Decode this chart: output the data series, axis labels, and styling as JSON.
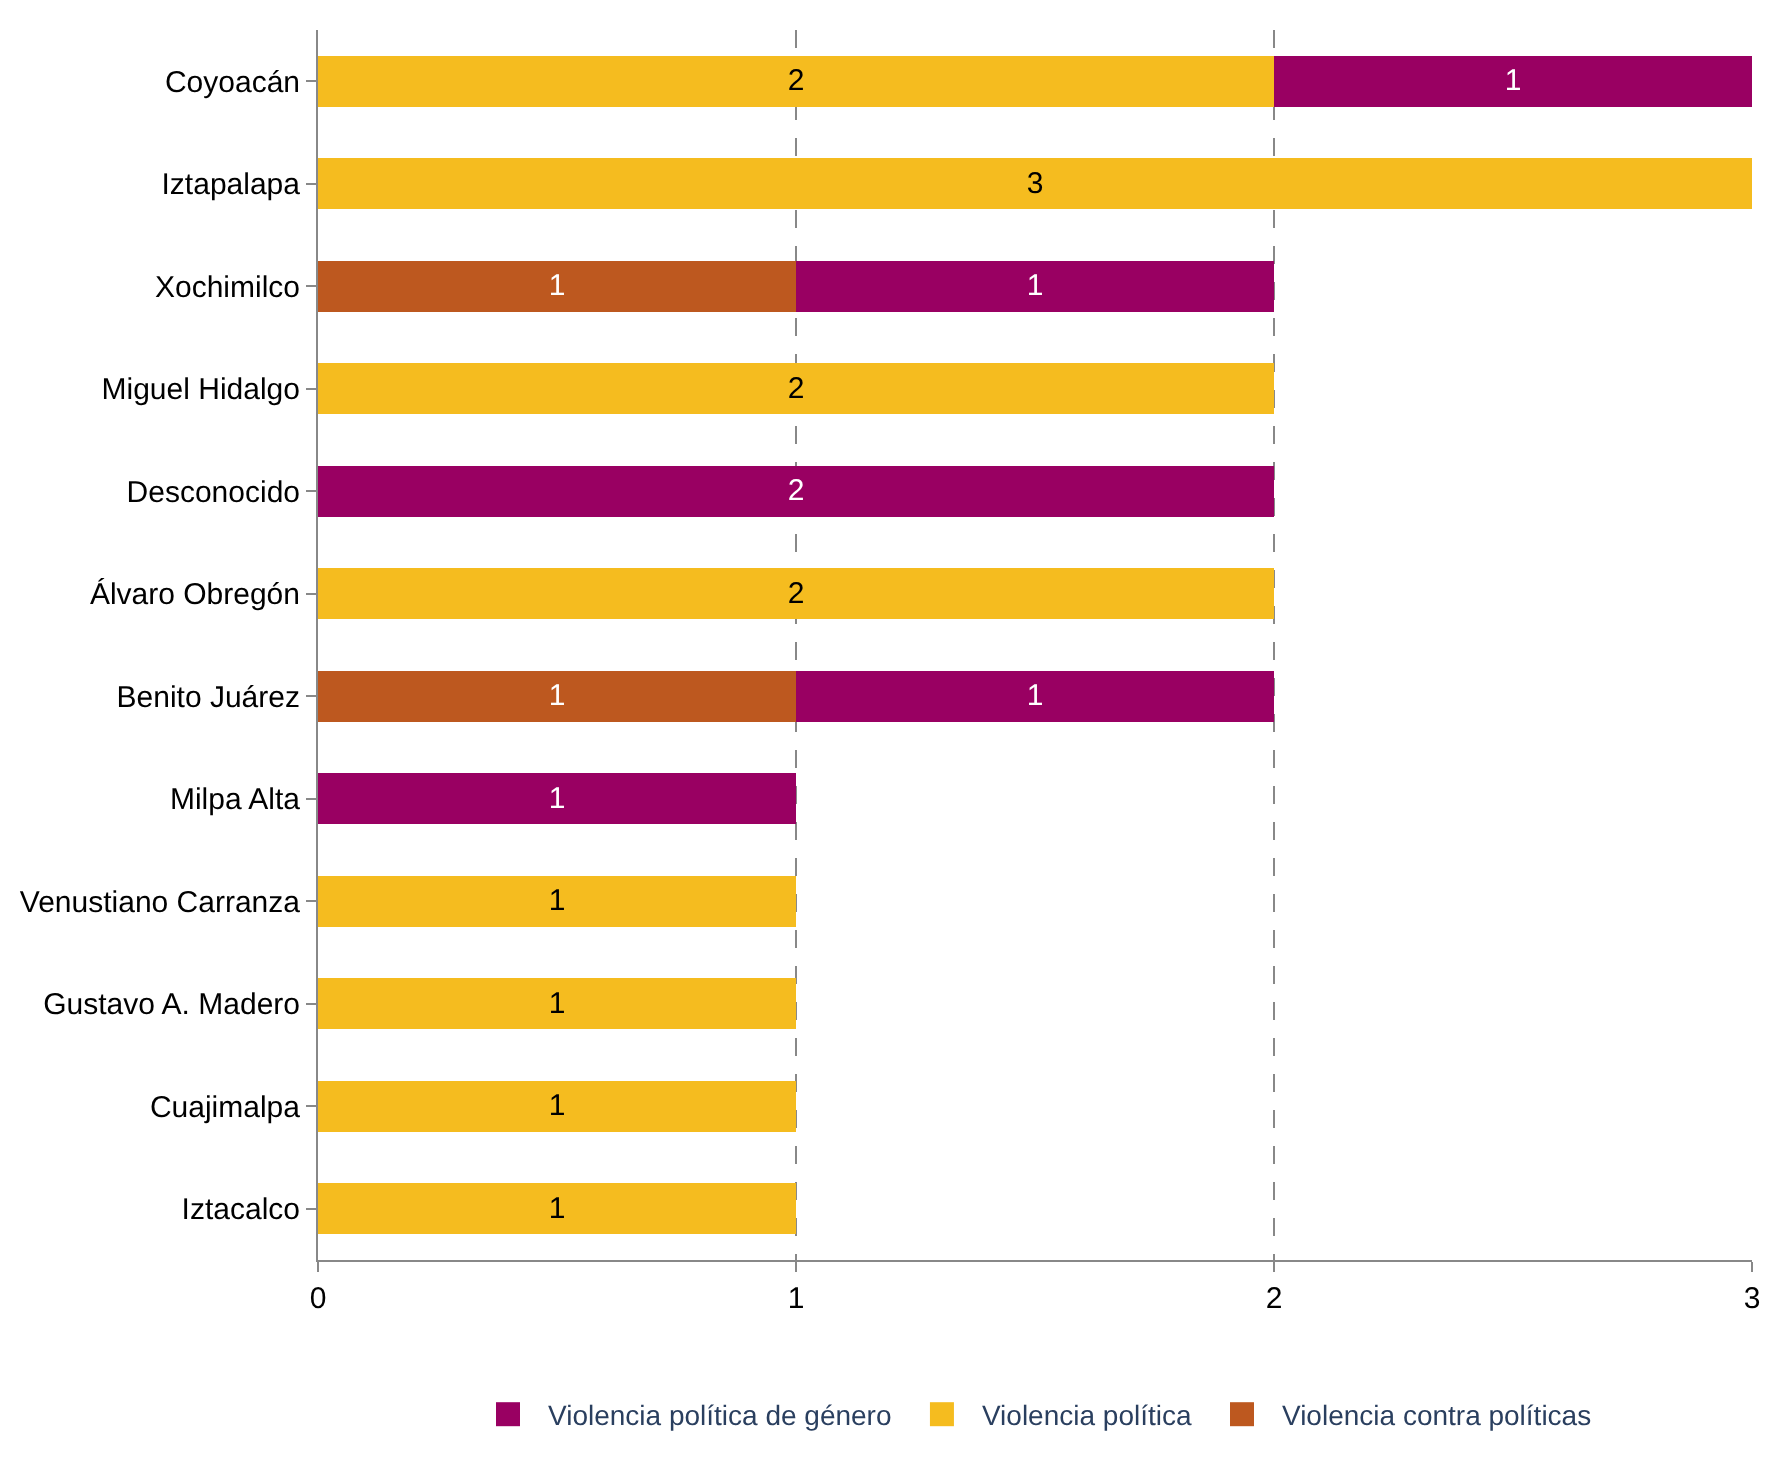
{
  "chart_data": {
    "type": "bar",
    "orientation": "horizontal",
    "stacked": true,
    "data_labels": true,
    "grid": "x",
    "legend": "bottom",
    "categories": [
      "Coyoacán",
      "Iztapalapa",
      "Xochimilco",
      "Miguel Hidalgo",
      "Desconocido",
      "Álvaro Obregón",
      "Benito Juárez",
      "Milpa Alta",
      "Venustiano Carranza",
      "Gustavo A. Madero",
      "Cuajimalpa",
      "Iztacalco"
    ],
    "series": [
      {
        "name": "Violencia contra políticas",
        "color": "#bd581f",
        "values": [
          null,
          null,
          1,
          null,
          null,
          null,
          1,
          null,
          null,
          null,
          null,
          null
        ]
      },
      {
        "name": "Violencia política",
        "color": "#f5bc1f",
        "values": [
          2,
          3,
          null,
          2,
          null,
          2,
          null,
          null,
          1,
          1,
          1,
          1
        ]
      },
      {
        "name": "Violencia política de género",
        "color": "#990062",
        "values": [
          1,
          null,
          1,
          null,
          2,
          null,
          1,
          1,
          null,
          null,
          null,
          null
        ]
      }
    ],
    "xlim": [
      0,
      3
    ],
    "xticks": [
      0,
      1,
      2,
      3
    ]
  }
}
